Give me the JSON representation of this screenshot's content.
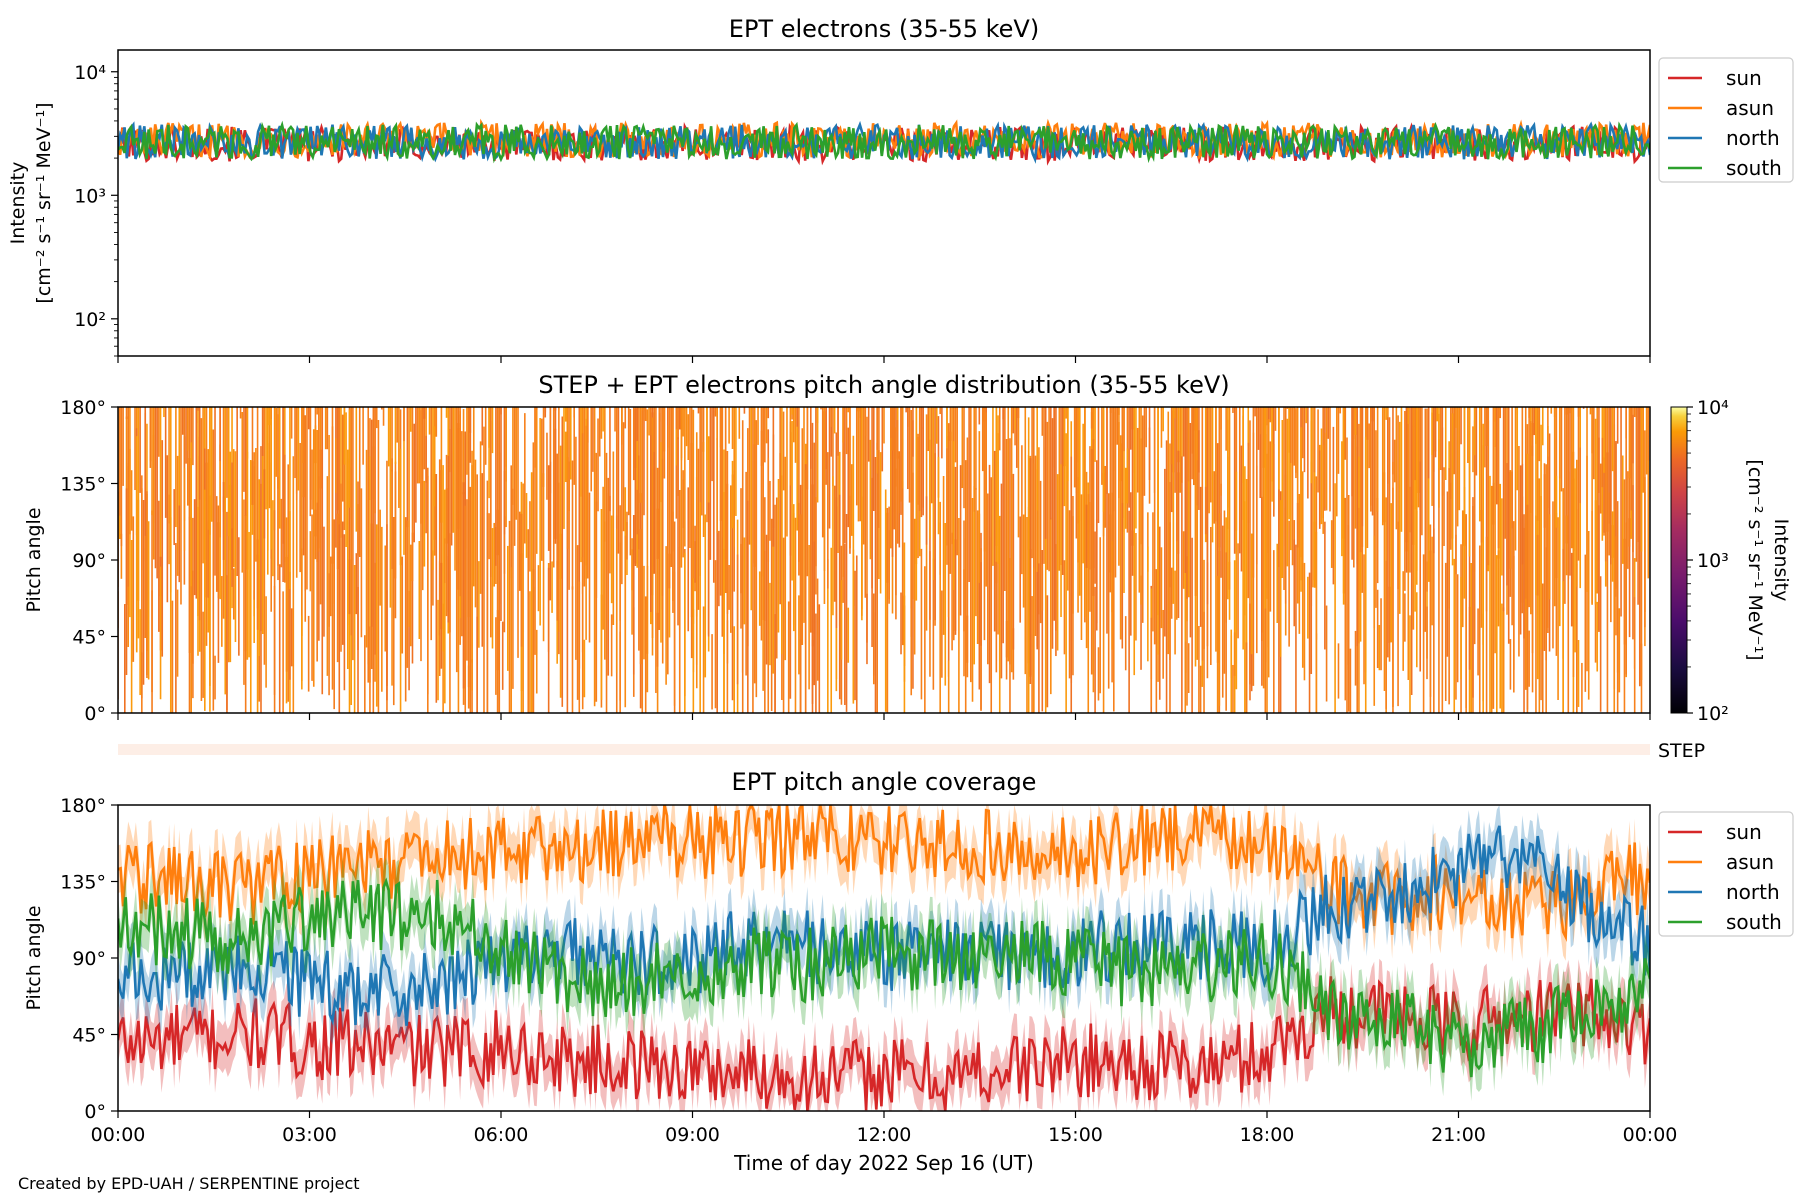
{
  "footer": {
    "credit": "Created by EPD-UAH / SERPENTINE project"
  },
  "colors": {
    "sun": "#d62728",
    "asun": "#ff7f0e",
    "north": "#1f77b4",
    "south": "#2ca02c"
  },
  "chart_data": [
    {
      "type": "line",
      "title": "EPT electrons (35-55 keV)",
      "ylabel": "Intensity",
      "yunits": "[cm⁻² s⁻¹ sr⁻¹ MeV⁻¹]",
      "yscale": "log",
      "ylim": [
        50,
        15000
      ],
      "yticks": [
        "10²",
        "10³",
        "10⁴"
      ],
      "xlim": [
        "2022-09-16 00:00",
        "2022-09-17 00:00"
      ],
      "legend": "upper-right-outside",
      "series": [
        {
          "name": "sun",
          "color": "#d62728",
          "typical": 2600,
          "min": 1500,
          "max": 3800
        },
        {
          "name": "asun",
          "color": "#ff7f0e",
          "typical": 2800,
          "min": 1400,
          "max": 4200
        },
        {
          "name": "north",
          "color": "#1f77b4",
          "typical": 2700,
          "min": 1600,
          "max": 3900
        },
        {
          "name": "south",
          "color": "#2ca02c",
          "typical": 2700,
          "min": 1700,
          "max": 4800
        }
      ]
    },
    {
      "type": "heatmap",
      "title": "STEP + EPT electrons pitch angle distribution (35-55 keV)",
      "ylabel": "Pitch angle",
      "ylim": [
        0,
        180
      ],
      "yticks": [
        "0°",
        "45°",
        "90°",
        "135°",
        "180°"
      ],
      "colorbar": {
        "label": "Intensity",
        "units": "[cm⁻² s⁻¹ sr⁻¹ MeV⁻¹]",
        "scale": "log",
        "range": [
          100,
          10000
        ],
        "ticks": [
          "10²",
          "10³",
          "10⁴"
        ],
        "colormap": "inferno"
      },
      "dominant_value": 2700
    },
    {
      "type": "bar",
      "label": "STEP",
      "note_value": "empty strip"
    },
    {
      "type": "line",
      "title": "EPT pitch angle coverage",
      "ylabel": "Pitch angle",
      "ylim": [
        0,
        180
      ],
      "yticks": [
        "0°",
        "45°",
        "90°",
        "135°",
        "180°"
      ],
      "xlabel": "Time of day 2022 Sep 16 (UT)",
      "xticks": [
        "00:00",
        "03:00",
        "06:00",
        "09:00",
        "12:00",
        "15:00",
        "18:00",
        "21:00",
        "00:00"
      ],
      "legend": "upper-right-outside",
      "series": [
        {
          "name": "sun",
          "color": "#d62728",
          "x": [
            0,
            1,
            2,
            3,
            4,
            5,
            6,
            7,
            8,
            9,
            10,
            11,
            12,
            13,
            14,
            15,
            16,
            17,
            18,
            19,
            20,
            21,
            22,
            23,
            24
          ],
          "y": [
            40,
            42,
            45,
            40,
            38,
            35,
            38,
            30,
            28,
            25,
            22,
            20,
            22,
            20,
            25,
            30,
            28,
            25,
            35,
            60,
            55,
            50,
            55,
            60,
            45
          ]
        },
        {
          "name": "asun",
          "color": "#ff7f0e",
          "x": [
            0,
            1,
            2,
            3,
            4,
            5,
            6,
            7,
            8,
            9,
            10,
            11,
            12,
            13,
            14,
            15,
            16,
            17,
            18,
            19,
            20,
            21,
            22,
            23,
            24
          ],
          "y": [
            140,
            135,
            130,
            140,
            145,
            150,
            152,
            155,
            160,
            158,
            160,
            162,
            160,
            158,
            155,
            150,
            160,
            162,
            160,
            130,
            125,
            130,
            120,
            125,
            140
          ]
        },
        {
          "name": "north",
          "color": "#1f77b4",
          "x": [
            0,
            1,
            2,
            3,
            4,
            5,
            6,
            7,
            8,
            9,
            10,
            11,
            12,
            13,
            14,
            15,
            16,
            17,
            18,
            19,
            20,
            21,
            22,
            23,
            24
          ],
          "y": [
            75,
            80,
            85,
            75,
            70,
            72,
            90,
            95,
            85,
            90,
            100,
            95,
            92,
            95,
            90,
            95,
            100,
            98,
            95,
            120,
            130,
            140,
            150,
            120,
            100
          ]
        },
        {
          "name": "south",
          "color": "#2ca02c",
          "x": [
            0,
            1,
            2,
            3,
            4,
            5,
            6,
            7,
            8,
            9,
            10,
            11,
            12,
            13,
            14,
            15,
            16,
            17,
            18,
            19,
            20,
            21,
            22,
            23,
            24
          ],
          "y": [
            110,
            105,
            100,
            112,
            115,
            118,
            100,
            80,
            75,
            80,
            90,
            85,
            95,
            90,
            95,
            88,
            80,
            85,
            90,
            60,
            50,
            40,
            45,
            60,
            70
          ]
        }
      ]
    }
  ]
}
